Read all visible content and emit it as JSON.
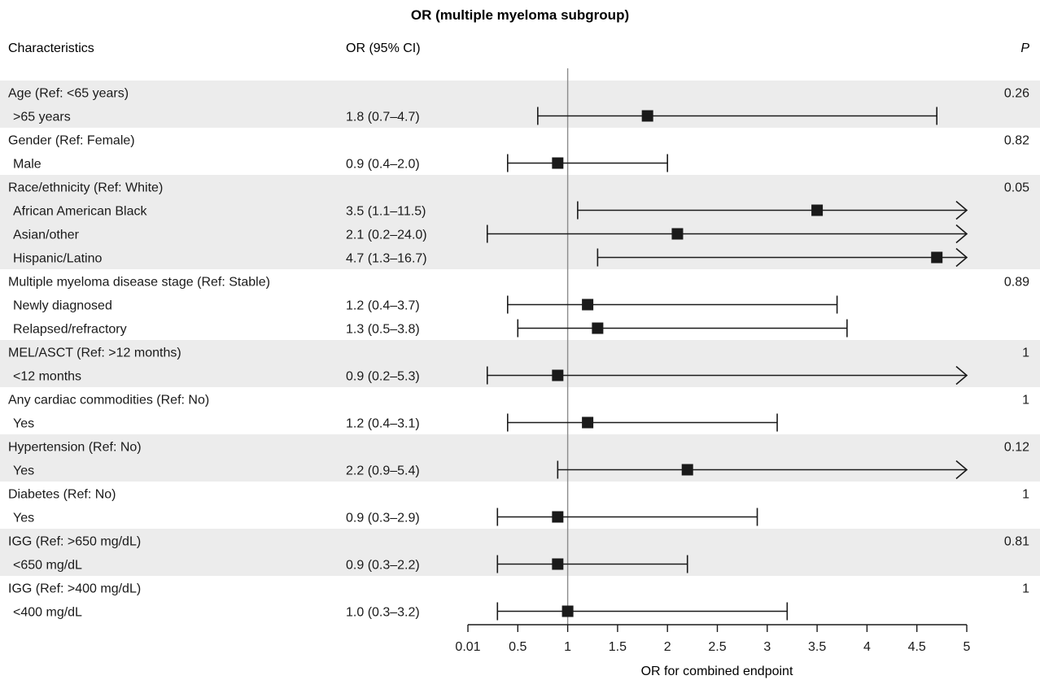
{
  "chart_data": {
    "type": "forest",
    "title": "OR (multiple myeloma subgroup)",
    "headers": {
      "characteristics": "Characteristics",
      "or_ci": "OR (95% CI)",
      "p": "P"
    },
    "xlabel": "OR for combined endpoint",
    "xticks": [
      {
        "label": "0.01",
        "value": 0.01
      },
      {
        "label": "0.5",
        "value": 0.5
      },
      {
        "label": "1",
        "value": 1
      },
      {
        "label": "1.5",
        "value": 1.5
      },
      {
        "label": "2",
        "value": 2
      },
      {
        "label": "2.5",
        "value": 2.5
      },
      {
        "label": "3",
        "value": 3
      },
      {
        "label": "3.5",
        "value": 3.5
      },
      {
        "label": "4",
        "value": 4
      },
      {
        "label": "4.5",
        "value": 4.5
      },
      {
        "label": "5",
        "value": 5
      }
    ],
    "xlim": [
      0.01,
      5
    ],
    "reference_line": 1,
    "groups": [
      {
        "label": "Age (Ref: <65 years)",
        "p": "0.26",
        "shaded": true,
        "rows": [
          {
            "label": ">65 years",
            "ci_text": "1.8 (0.7–4.7)",
            "or": 1.8,
            "lo": 0.7,
            "hi": 4.7
          }
        ]
      },
      {
        "label": "Gender (Ref: Female)",
        "p": "0.82",
        "shaded": false,
        "rows": [
          {
            "label": "Male",
            "ci_text": "0.9 (0.4–2.0)",
            "or": 0.9,
            "lo": 0.4,
            "hi": 2.0
          }
        ]
      },
      {
        "label": "Race/ethnicity (Ref: White)",
        "p": "0.05",
        "shaded": true,
        "rows": [
          {
            "label": "African American Black",
            "ci_text": "3.5 (1.1–11.5)",
            "or": 3.5,
            "lo": 1.1,
            "hi": 11.5
          },
          {
            "label": "Asian/other",
            "ci_text": "2.1 (0.2–24.0)",
            "or": 2.1,
            "lo": 0.2,
            "hi": 24.0
          },
          {
            "label": "Hispanic/Latino",
            "ci_text": "4.7 (1.3–16.7)",
            "or": 4.7,
            "lo": 1.3,
            "hi": 16.7
          }
        ]
      },
      {
        "label": "Multiple myeloma disease stage (Ref: Stable)",
        "p": "0.89",
        "shaded": false,
        "rows": [
          {
            "label": "Newly diagnosed",
            "ci_text": "1.2 (0.4–3.7)",
            "or": 1.2,
            "lo": 0.4,
            "hi": 3.7
          },
          {
            "label": "Relapsed/refractory",
            "ci_text": "1.3 (0.5–3.8)",
            "or": 1.3,
            "lo": 0.5,
            "hi": 3.8
          }
        ]
      },
      {
        "label": "MEL/ASCT (Ref: >12 months)",
        "p": "1",
        "shaded": true,
        "rows": [
          {
            "label": "<12 months",
            "ci_text": "0.9 (0.2–5.3)",
            "or": 0.9,
            "lo": 0.2,
            "hi": 5.3
          }
        ]
      },
      {
        "label": "Any cardiac commodities (Ref: No)",
        "p": "1",
        "shaded": false,
        "rows": [
          {
            "label": "Yes",
            "ci_text": "1.2 (0.4–3.1)",
            "or": 1.2,
            "lo": 0.4,
            "hi": 3.1
          }
        ]
      },
      {
        "label": "Hypertension (Ref: No)",
        "p": "0.12",
        "shaded": true,
        "rows": [
          {
            "label": "Yes",
            "ci_text": "2.2 (0.9–5.4)",
            "or": 2.2,
            "lo": 0.9,
            "hi": 5.4
          }
        ]
      },
      {
        "label": "Diabetes (Ref: No)",
        "p": "1",
        "shaded": false,
        "rows": [
          {
            "label": "Yes",
            "ci_text": "0.9 (0.3–2.9)",
            "or": 0.9,
            "lo": 0.3,
            "hi": 2.9
          }
        ]
      },
      {
        "label": "IGG (Ref: >650 mg/dL)",
        "p": "0.81",
        "shaded": true,
        "rows": [
          {
            "label": "<650 mg/dL",
            "ci_text": "0.9 (0.3–2.2)",
            "or": 0.9,
            "lo": 0.3,
            "hi": 2.2
          }
        ]
      },
      {
        "label": "IGG (Ref: >400 mg/dL)",
        "p": "1",
        "shaded": false,
        "rows": [
          {
            "label": "<400 mg/dL",
            "ci_text": "1.0 (0.3–3.2)",
            "or": 1.0,
            "lo": 0.3,
            "hi": 3.2
          }
        ]
      }
    ]
  },
  "colors": {
    "shade": "#ececec",
    "ink": "#1a1a1a",
    "ref_line": "#8c8c8c"
  }
}
